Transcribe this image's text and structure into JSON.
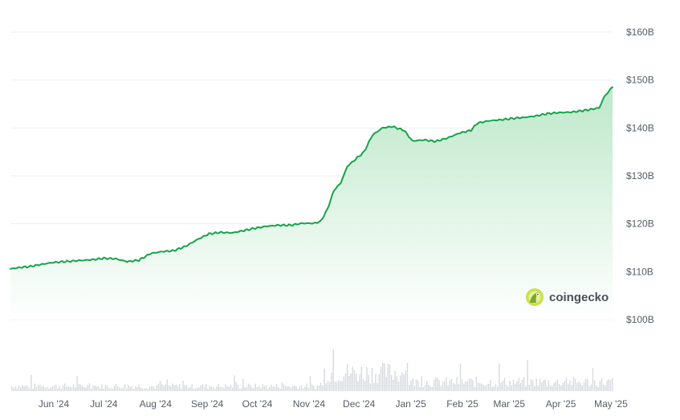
{
  "brand": {
    "name": "coingecko",
    "logo_icon": "gecko-logo-icon"
  },
  "colors": {
    "line": "#16a34a",
    "fill_top": "#b9e7c6",
    "fill_bottom": "#ffffff",
    "grid": "#eceef1",
    "volume": "#d6d9de",
    "logo": "#c7e24a"
  },
  "chart_data": {
    "type": "area",
    "title": "",
    "xlabel": "",
    "ylabel": "",
    "y_unit": "B",
    "ylim": [
      100,
      160
    ],
    "y_ticks": [
      {
        "value": 100,
        "label": "$100B"
      },
      {
        "value": 110,
        "label": "$110B"
      },
      {
        "value": 120,
        "label": "$120B"
      },
      {
        "value": 130,
        "label": "$130B"
      },
      {
        "value": 140,
        "label": "$140B"
      },
      {
        "value": 150,
        "label": "$150B"
      },
      {
        "value": 160,
        "label": "$160B"
      }
    ],
    "x_range": [
      "2024-05-06",
      "2025-05-02"
    ],
    "x_ticks": [
      {
        "date": "2024-06-01",
        "label": "Jun '24"
      },
      {
        "date": "2024-07-01",
        "label": "Jul '24"
      },
      {
        "date": "2024-08-01",
        "label": "Aug '24"
      },
      {
        "date": "2024-09-01",
        "label": "Sep '24"
      },
      {
        "date": "2024-10-01",
        "label": "Oct '24"
      },
      {
        "date": "2024-11-01",
        "label": "Nov '24"
      },
      {
        "date": "2024-12-01",
        "label": "Dec '24"
      },
      {
        "date": "2025-01-01",
        "label": "Jan '25"
      },
      {
        "date": "2025-02-01",
        "label": "Feb '25"
      },
      {
        "date": "2025-03-01",
        "label": "Mar '25"
      },
      {
        "date": "2025-04-01",
        "label": "Apr '25"
      },
      {
        "date": "2025-05-01",
        "label": "May '25"
      }
    ],
    "grid": true,
    "legend": "none",
    "series": [
      {
        "values": [
          [
            "2024-05-06",
            110.6
          ],
          [
            "2024-05-12",
            110.9
          ],
          [
            "2024-05-18",
            111.1
          ],
          [
            "2024-05-24",
            111.5
          ],
          [
            "2024-05-31",
            111.9
          ],
          [
            "2024-06-07",
            112.1
          ],
          [
            "2024-06-15",
            112.3
          ],
          [
            "2024-06-24",
            112.5
          ],
          [
            "2024-07-01",
            112.8
          ],
          [
            "2024-07-08",
            112.7
          ],
          [
            "2024-07-15",
            112.1
          ],
          [
            "2024-07-22",
            112.4
          ],
          [
            "2024-07-29",
            113.8
          ],
          [
            "2024-08-05",
            114.2
          ],
          [
            "2024-08-12",
            114.4
          ],
          [
            "2024-08-19",
            115.3
          ],
          [
            "2024-08-26",
            116.7
          ],
          [
            "2024-09-02",
            117.9
          ],
          [
            "2024-09-09",
            118.2
          ],
          [
            "2024-09-16",
            118.1
          ],
          [
            "2024-09-23",
            118.6
          ],
          [
            "2024-09-30",
            119.1
          ],
          [
            "2024-10-07",
            119.5
          ],
          [
            "2024-10-14",
            119.7
          ],
          [
            "2024-10-21",
            119.7
          ],
          [
            "2024-10-28",
            120.1
          ],
          [
            "2024-11-04",
            120.1
          ],
          [
            "2024-11-08",
            120.5
          ],
          [
            "2024-11-12",
            123.0
          ],
          [
            "2024-11-16",
            127.0
          ],
          [
            "2024-11-20",
            128.5
          ],
          [
            "2024-11-24",
            132.0
          ],
          [
            "2024-11-29",
            133.5
          ],
          [
            "2024-12-04",
            135.0
          ],
          [
            "2024-12-09",
            138.5
          ],
          [
            "2024-12-15",
            140.0
          ],
          [
            "2024-12-21",
            140.3
          ],
          [
            "2024-12-28",
            139.5
          ],
          [
            "2025-01-02",
            137.3
          ],
          [
            "2025-01-09",
            137.5
          ],
          [
            "2025-01-16",
            137.2
          ],
          [
            "2025-01-23",
            137.9
          ],
          [
            "2025-01-30",
            138.9
          ],
          [
            "2025-02-06",
            139.5
          ],
          [
            "2025-02-10",
            141.0
          ],
          [
            "2025-02-17",
            141.5
          ],
          [
            "2025-02-24",
            141.7
          ],
          [
            "2025-03-03",
            142.0
          ],
          [
            "2025-03-10",
            142.2
          ],
          [
            "2025-03-17",
            142.5
          ],
          [
            "2025-03-24",
            143.0
          ],
          [
            "2025-03-31",
            143.2
          ],
          [
            "2025-04-07",
            143.3
          ],
          [
            "2025-04-14",
            143.6
          ],
          [
            "2025-04-21",
            144.0
          ],
          [
            "2025-04-24",
            144.2
          ],
          [
            "2025-04-27",
            146.5
          ],
          [
            "2025-05-02",
            148.6
          ]
        ]
      }
    ]
  }
}
